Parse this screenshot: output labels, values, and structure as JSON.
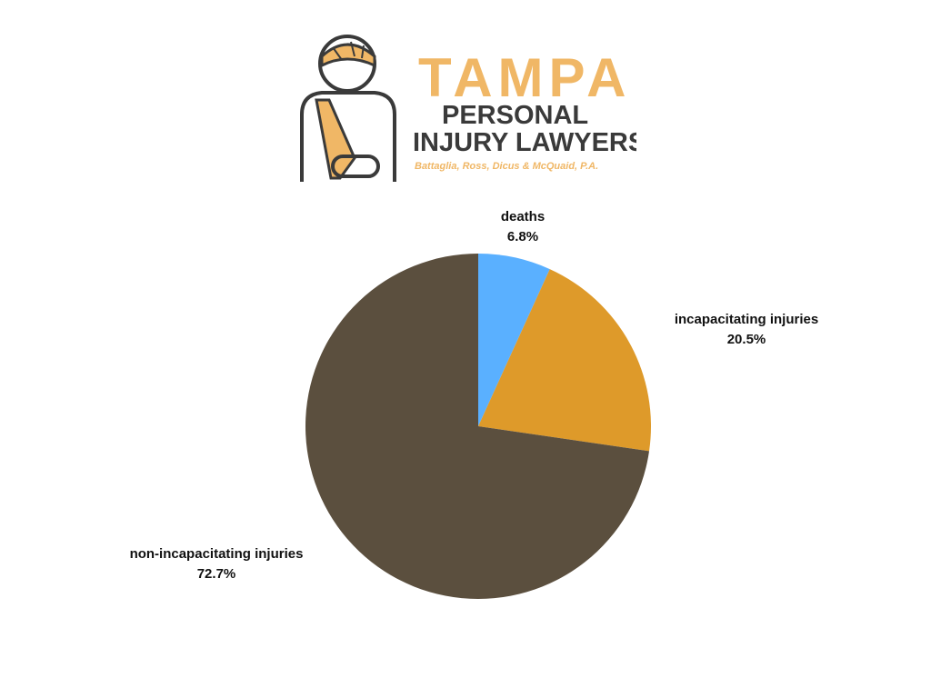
{
  "brand": {
    "line1": "TAMPA",
    "line2": "PERSONAL",
    "line3": "INJURY LAWYERS",
    "tagline": "Battaglia, Ross, Dicus & McQuaid, P.A.",
    "accent_color": "#F0B766",
    "dark_color": "#3A3A3A",
    "icon": "injured-person-icon"
  },
  "chart_data": {
    "type": "pie",
    "title": "",
    "slices": [
      {
        "label": "deaths",
        "value": 6.8,
        "display": "6.8%",
        "color": "#5AB0FF"
      },
      {
        "label": "incapacitating injuries",
        "value": 20.5,
        "display": "20.5%",
        "color": "#DE9A2A"
      },
      {
        "label": "non-incapacitating injuries",
        "value": 72.7,
        "display": "72.7%",
        "color": "#5B4F3E"
      }
    ],
    "start_angle": "12 o'clock",
    "direction": "clockwise",
    "legend": "none",
    "labels": "outside"
  }
}
